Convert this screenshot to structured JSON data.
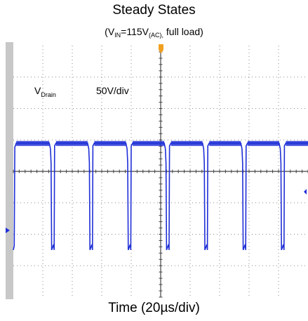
{
  "chart_data": {
    "type": "line",
    "title": "Steady States",
    "subtitle": {
      "prefix": "(V",
      "sub1": "IN",
      "middle": "=115V",
      "sub2": "(AC),",
      "suffix": " full load)"
    },
    "xlabel": "Time (20µs/div)",
    "trace_label": {
      "main": "V",
      "sub": "Drain"
    },
    "scale_label": "50V/div",
    "x_divisions": 10,
    "y_divisions": 8,
    "xlim_div": [
      0,
      10
    ],
    "ylim_div": [
      -4,
      4
    ],
    "grid": true,
    "series": [
      {
        "color": "#1f2fd6",
        "high_level_div": 0.9,
        "low_level_div": -2.5,
        "period_div": 1.3,
        "pulses": [
          {
            "fall": 1.28,
            "rise": 1.4
          },
          {
            "fall": 2.58,
            "rise": 2.7
          },
          {
            "fall": 3.88,
            "rise": 4.0
          },
          {
            "fall": 5.18,
            "rise": 5.3
          },
          {
            "fall": 6.48,
            "rise": 6.6
          },
          {
            "fall": 7.78,
            "rise": 7.9
          },
          {
            "fall": 9.08,
            "rise": 9.2
          }
        ]
      }
    ]
  },
  "colors": {
    "trace": "#1f2fd6",
    "trigger": "#f0a020",
    "grid": "#8a8a8a",
    "left_strip": "#c8c8c8"
  }
}
